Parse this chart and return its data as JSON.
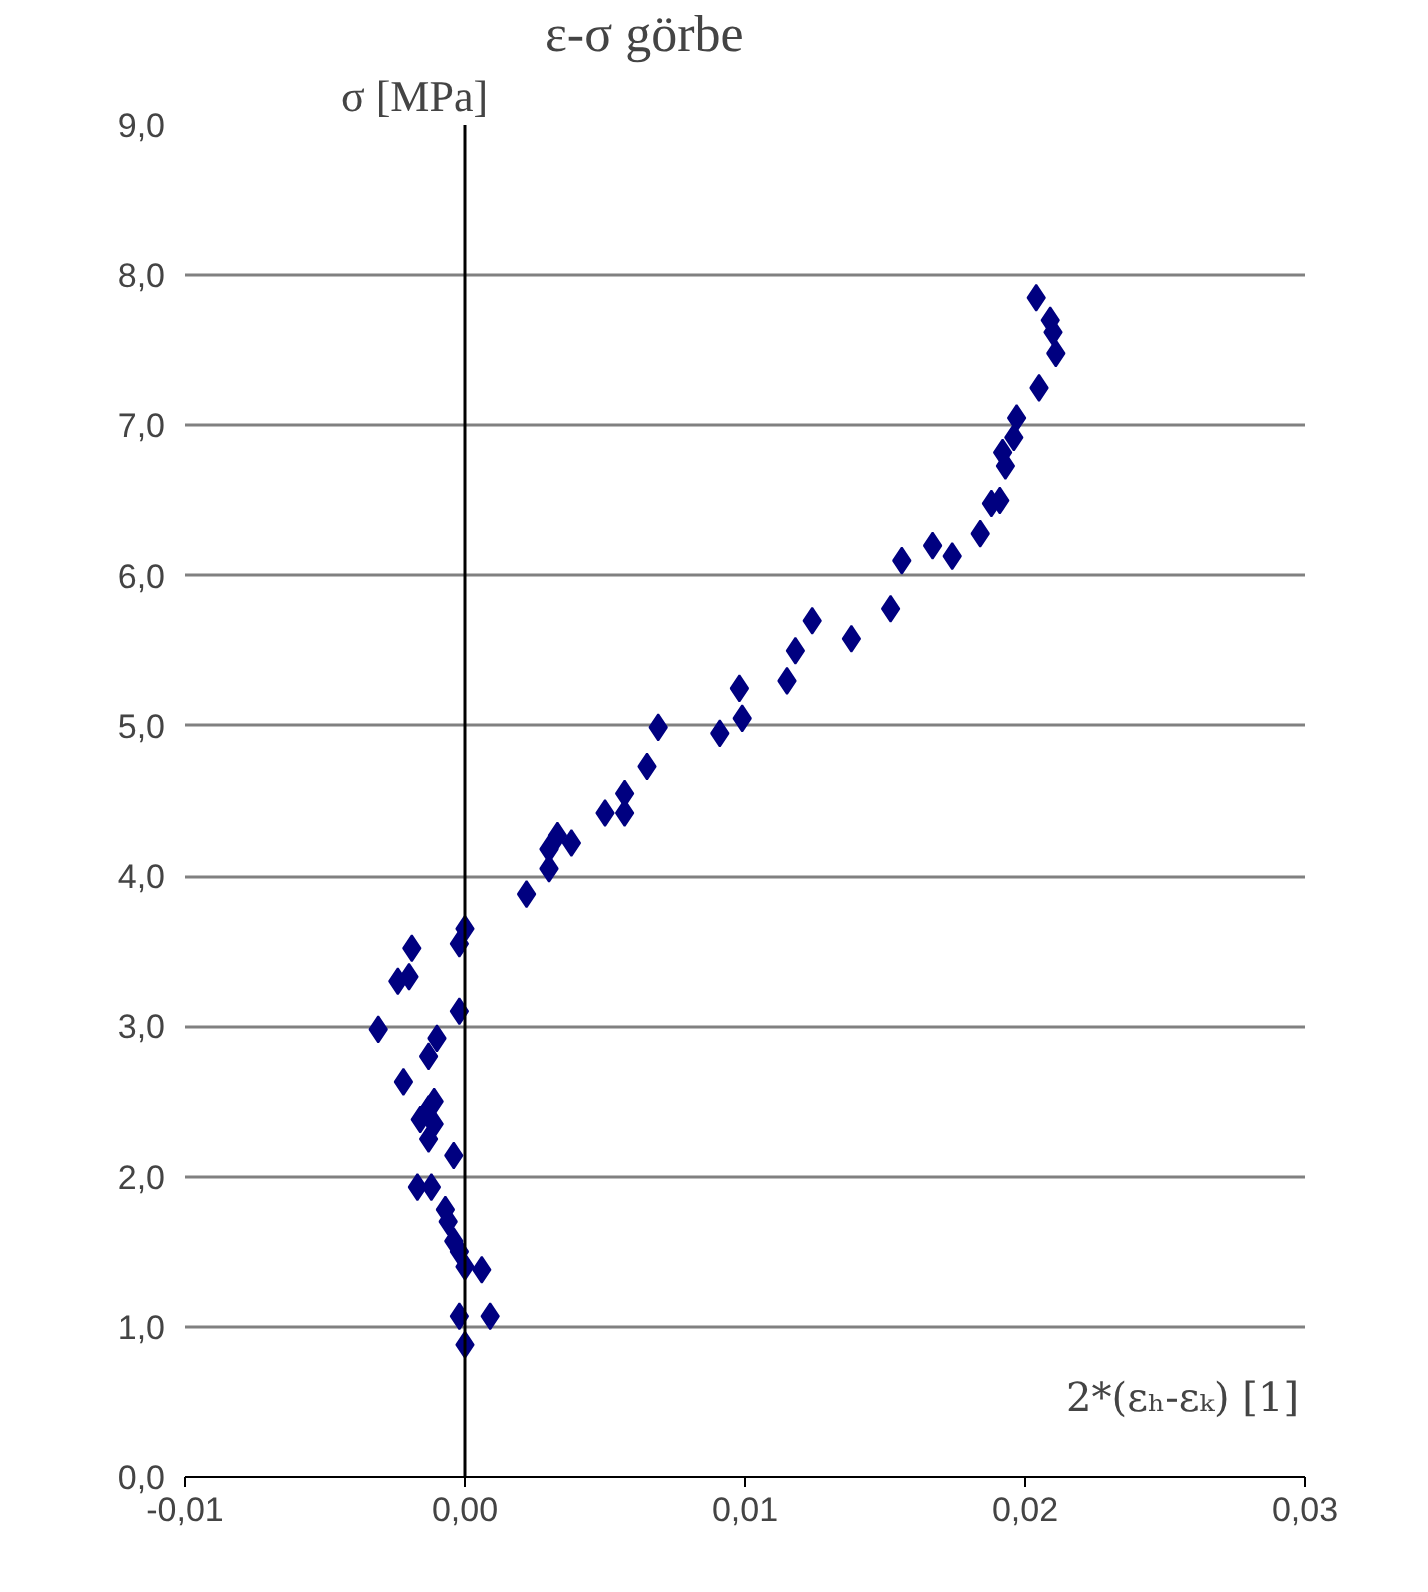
{
  "chart_data": {
    "type": "scatter",
    "title": "ε-σ görbe",
    "xlabel": "2*(εₕ-εₖ) [1]",
    "ylabel": "σ [MPa]",
    "marker": "diamond",
    "grid": "y",
    "color": "#000080",
    "x": [
      0.0,
      -0.0002,
      0.0009,
      0.0006,
      0.0,
      -0.0002,
      -0.0004,
      -0.0006,
      -0.0007,
      -0.0012,
      -0.0017,
      -0.0004,
      -0.0013,
      -0.0011,
      -0.0016,
      -0.0013,
      -0.0011,
      -0.0022,
      -0.0013,
      -0.001,
      -0.0031,
      -0.0002,
      -0.0024,
      -0.002,
      -0.0019,
      -0.0002,
      0.0,
      0.0022,
      0.003,
      0.003,
      0.0033,
      0.0038,
      0.005,
      0.0057,
      0.0057,
      0.0065,
      0.0069,
      0.0091,
      0.0099,
      0.0098,
      0.0115,
      0.0118,
      0.0124,
      0.0138,
      0.0152,
      0.0156,
      0.0167,
      0.0174,
      0.0184,
      0.0188,
      0.0191,
      0.0193,
      0.0192,
      0.0196,
      0.0197,
      0.0205,
      0.0211,
      0.021,
      0.0209,
      0.0204
    ],
    "values": [
      0.88,
      1.07,
      1.07,
      1.38,
      1.4,
      1.5,
      1.57,
      1.7,
      1.78,
      1.93,
      1.93,
      2.14,
      2.25,
      2.35,
      2.38,
      2.45,
      2.5,
      2.63,
      2.8,
      2.92,
      2.98,
      3.1,
      3.3,
      3.33,
      3.52,
      3.55,
      3.65,
      3.88,
      4.05,
      4.18,
      4.27,
      4.22,
      4.42,
      4.42,
      4.55,
      4.73,
      4.99,
      4.95,
      5.05,
      5.25,
      5.3,
      5.5,
      5.7,
      5.58,
      5.78,
      6.1,
      6.2,
      6.13,
      6.28,
      6.48,
      6.5,
      6.73,
      6.82,
      6.92,
      7.05,
      7.25,
      7.48,
      7.62,
      7.7,
      7.85
    ],
    "xlim": [
      -0.01,
      0.03
    ],
    "ylim": [
      0,
      9
    ],
    "xticks": [
      {
        "value": -0.01,
        "label": "-0,01"
      },
      {
        "value": 0,
        "label": "0,00"
      },
      {
        "value": 0.01,
        "label": "0,01"
      },
      {
        "value": 0.02,
        "label": "0,02"
      },
      {
        "value": 0.03,
        "label": "0,03"
      }
    ],
    "yticks": [
      {
        "value": 0,
        "label": "0,0"
      },
      {
        "value": 1,
        "label": "1,0"
      },
      {
        "value": 2,
        "label": "2,0"
      },
      {
        "value": 3,
        "label": "3,0"
      },
      {
        "value": 4,
        "label": "4,0"
      },
      {
        "value": 5,
        "label": "5,0"
      },
      {
        "value": 6,
        "label": "6,0"
      },
      {
        "value": 7,
        "label": "7,0"
      },
      {
        "value": 8,
        "label": "8,0"
      },
      {
        "value": 9,
        "label": "9,0"
      }
    ],
    "ref_lines": [
      {
        "axis": "x",
        "value": 0,
        "color": "#000000"
      }
    ]
  }
}
